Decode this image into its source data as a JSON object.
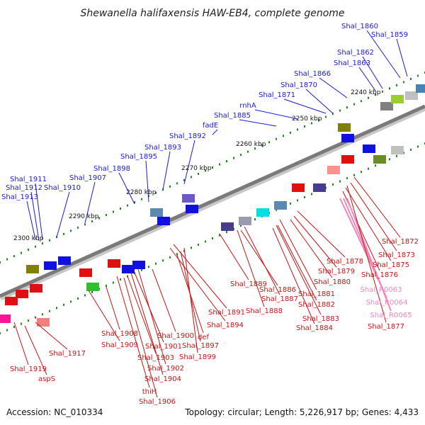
{
  "title": "Shewanella halifaxensis HAW-EB4, complete genome",
  "accession": "Accession: NC_010334",
  "topology": "Topology: circular; Length: 5,226,917 bp; Genes: 4,433",
  "colors": {
    "blue_label": "#1a1adc",
    "red_label": "#c81414",
    "pink_label": "#ee88bb",
    "backbone": "#808080",
    "tick_green": "#1a8a1a"
  },
  "ticks": [
    "2240 kbp",
    "2250 kbp",
    "2260 kbp",
    "2270 kbp",
    "2280 kbp",
    "2290 kbp",
    "2300 kbp"
  ],
  "labels_top": [
    "Shal_1860",
    "Shal_1859",
    "Shal_1862",
    "Shal_1863",
    "Shal_1866",
    "Shal_1870",
    "Shal_1871",
    "rnhA",
    "Shal_1885",
    "fadE",
    "Shal_1892",
    "Shal_1893",
    "Shal_1895",
    "Shal_1898",
    "Shal_1907",
    "Shal_1911",
    "Shal_1912",
    "Shal_1910",
    "Shal_1913"
  ],
  "labels_bottom": [
    "Shal_1872",
    "Shal_1873",
    "Shal_1875",
    "Shal_1876",
    "Shal_1878",
    "Shal_1879",
    "Shal_1880",
    "Shal_R0063",
    "Shal_R0064",
    "Shal_R0065",
    "Shal_1877",
    "Shal_1881",
    "Shal_1882",
    "Shal_1883",
    "Shal_1884",
    "Shal_1889",
    "Shal_1886",
    "Shal_1887",
    "Shal_1888",
    "Shal_1891",
    "Shal_1894",
    "Shal_1900",
    "def",
    "Shal_1897",
    "Shal_1899",
    "Shal_1901",
    "Shal_1903",
    "Shal_1902",
    "Shal_1904",
    "thiH",
    "Shal_1906",
    "Shal_1908",
    "Shal_1909",
    "Shal_1917",
    "Shal_1919",
    "aspS"
  ]
}
